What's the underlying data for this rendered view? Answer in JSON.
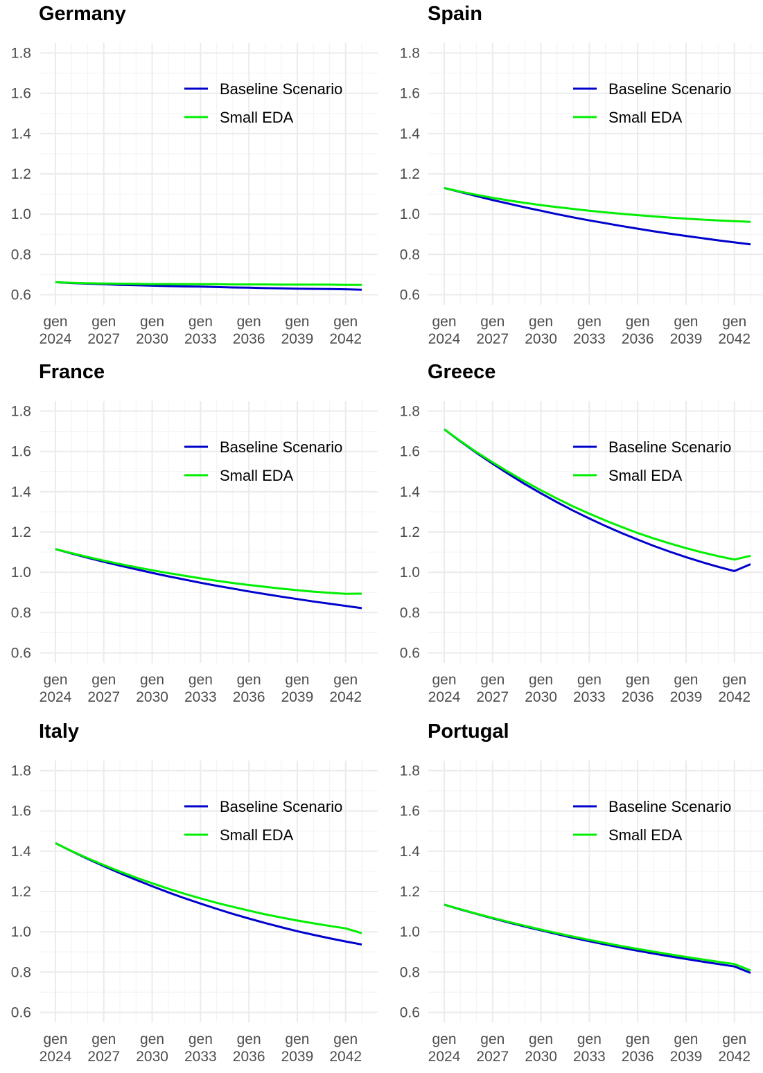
{
  "colors": {
    "baseline": "#0000cd",
    "small_eda": "#00ee00",
    "grid_major": "#ebebeb",
    "grid_minor": "#f4f4f4"
  },
  "chart_data": [
    {
      "type": "line",
      "title": "Germany",
      "x": [
        "gen 2024",
        "gen 2025",
        "gen 2026",
        "gen 2027",
        "gen 2028",
        "gen 2029",
        "gen 2030",
        "gen 2031",
        "gen 2032",
        "gen 2033",
        "gen 2034",
        "gen 2035",
        "gen 2036",
        "gen 2037",
        "gen 2038",
        "gen 2039",
        "gen 2040",
        "gen 2041",
        "gen 2042",
        "gen 2043"
      ],
      "x_ticks": [
        {
          "line1": "gen",
          "line2": "2024"
        },
        {
          "line1": "gen",
          "line2": "2027"
        },
        {
          "line1": "gen",
          "line2": "2030"
        },
        {
          "line1": "gen",
          "line2": "2033"
        },
        {
          "line1": "gen",
          "line2": "2036"
        },
        {
          "line1": "gen",
          "line2": "2039"
        },
        {
          "line1": "gen",
          "line2": "2042"
        }
      ],
      "y_ticks": [
        "0.6",
        "0.8",
        "1.0",
        "1.2",
        "1.4",
        "1.6",
        "1.8"
      ],
      "ylim": [
        0.55,
        1.85
      ],
      "grid": true,
      "legend_position": "top-right",
      "series": [
        {
          "name": "Baseline Scenario",
          "values": [
            0.662,
            0.658,
            0.655,
            0.652,
            0.649,
            0.647,
            0.645,
            0.643,
            0.641,
            0.64,
            0.638,
            0.636,
            0.635,
            0.633,
            0.632,
            0.63,
            0.629,
            0.628,
            0.627,
            0.625
          ]
        },
        {
          "name": "Small EDA",
          "values": [
            0.662,
            0.659,
            0.657,
            0.656,
            0.655,
            0.654,
            0.653,
            0.653,
            0.652,
            0.652,
            0.652,
            0.651,
            0.651,
            0.651,
            0.65,
            0.65,
            0.65,
            0.65,
            0.649,
            0.649
          ]
        }
      ]
    },
    {
      "type": "line",
      "title": "Spain",
      "x": [
        "gen 2024",
        "gen 2025",
        "gen 2026",
        "gen 2027",
        "gen 2028",
        "gen 2029",
        "gen 2030",
        "gen 2031",
        "gen 2032",
        "gen 2033",
        "gen 2034",
        "gen 2035",
        "gen 2036",
        "gen 2037",
        "gen 2038",
        "gen 2039",
        "gen 2040",
        "gen 2041",
        "gen 2042",
        "gen 2043"
      ],
      "x_ticks": [
        {
          "line1": "gen",
          "line2": "2024"
        },
        {
          "line1": "gen",
          "line2": "2027"
        },
        {
          "line1": "gen",
          "line2": "2030"
        },
        {
          "line1": "gen",
          "line2": "2033"
        },
        {
          "line1": "gen",
          "line2": "2036"
        },
        {
          "line1": "gen",
          "line2": "2039"
        },
        {
          "line1": "gen",
          "line2": "2042"
        }
      ],
      "y_ticks": [
        "0.6",
        "0.8",
        "1.0",
        "1.2",
        "1.4",
        "1.6",
        "1.8"
      ],
      "ylim": [
        0.55,
        1.85
      ],
      "grid": true,
      "legend_position": "top-right",
      "series": [
        {
          "name": "Baseline Scenario",
          "values": [
            1.13,
            1.11,
            1.09,
            1.07,
            1.052,
            1.034,
            1.017,
            1.0,
            0.984,
            0.969,
            0.955,
            0.941,
            0.928,
            0.915,
            0.903,
            0.892,
            0.881,
            0.87,
            0.86,
            0.85
          ]
        },
        {
          "name": "Small EDA",
          "values": [
            1.13,
            1.112,
            1.096,
            1.081,
            1.068,
            1.056,
            1.045,
            1.035,
            1.026,
            1.017,
            1.009,
            1.002,
            0.995,
            0.989,
            0.983,
            0.978,
            0.973,
            0.969,
            0.965,
            0.962
          ]
        }
      ]
    },
    {
      "type": "line",
      "title": "France",
      "x": [
        "gen 2024",
        "gen 2025",
        "gen 2026",
        "gen 2027",
        "gen 2028",
        "gen 2029",
        "gen 2030",
        "gen 2031",
        "gen 2032",
        "gen 2033",
        "gen 2034",
        "gen 2035",
        "gen 2036",
        "gen 2037",
        "gen 2038",
        "gen 2039",
        "gen 2040",
        "gen 2041",
        "gen 2042",
        "gen 2043"
      ],
      "x_ticks": [
        {
          "line1": "gen",
          "line2": "2024"
        },
        {
          "line1": "gen",
          "line2": "2027"
        },
        {
          "line1": "gen",
          "line2": "2030"
        },
        {
          "line1": "gen",
          "line2": "2033"
        },
        {
          "line1": "gen",
          "line2": "2036"
        },
        {
          "line1": "gen",
          "line2": "2039"
        },
        {
          "line1": "gen",
          "line2": "2042"
        }
      ],
      "y_ticks": [
        "0.6",
        "0.8",
        "1.0",
        "1.2",
        "1.4",
        "1.6",
        "1.8"
      ],
      "ylim": [
        0.55,
        1.85
      ],
      "grid": true,
      "legend_position": "top-right",
      "series": [
        {
          "name": "Baseline Scenario",
          "values": [
            1.115,
            1.093,
            1.072,
            1.052,
            1.033,
            1.015,
            0.997,
            0.98,
            0.964,
            0.948,
            0.933,
            0.919,
            0.905,
            0.892,
            0.879,
            0.867,
            0.855,
            0.844,
            0.833,
            0.822
          ]
        },
        {
          "name": "Small EDA",
          "values": [
            1.115,
            1.095,
            1.076,
            1.058,
            1.041,
            1.025,
            1.01,
            0.996,
            0.983,
            0.97,
            0.958,
            0.947,
            0.937,
            0.928,
            0.919,
            0.911,
            0.904,
            0.898,
            0.893,
            0.894
          ]
        }
      ]
    },
    {
      "type": "line",
      "title": "Greece",
      "x": [
        "gen 2024",
        "gen 2025",
        "gen 2026",
        "gen 2027",
        "gen 2028",
        "gen 2029",
        "gen 2030",
        "gen 2031",
        "gen 2032",
        "gen 2033",
        "gen 2034",
        "gen 2035",
        "gen 2036",
        "gen 2037",
        "gen 2038",
        "gen 2039",
        "gen 2040",
        "gen 2041",
        "gen 2042",
        "gen 2043"
      ],
      "x_ticks": [
        {
          "line1": "gen",
          "line2": "2024"
        },
        {
          "line1": "gen",
          "line2": "2027"
        },
        {
          "line1": "gen",
          "line2": "2030"
        },
        {
          "line1": "gen",
          "line2": "2033"
        },
        {
          "line1": "gen",
          "line2": "2036"
        },
        {
          "line1": "gen",
          "line2": "2039"
        },
        {
          "line1": "gen",
          "line2": "2042"
        }
      ],
      "y_ticks": [
        "0.6",
        "0.8",
        "1.0",
        "1.2",
        "1.4",
        "1.6",
        "1.8"
      ],
      "ylim": [
        0.55,
        1.85
      ],
      "grid": true,
      "legend_position": "top-right",
      "series": [
        {
          "name": "Baseline Scenario",
          "values": [
            1.71,
            1.65,
            1.593,
            1.539,
            1.487,
            1.438,
            1.392,
            1.348,
            1.306,
            1.267,
            1.23,
            1.195,
            1.162,
            1.131,
            1.102,
            1.075,
            1.05,
            1.027,
            1.006,
            1.04
          ]
        },
        {
          "name": "Small EDA",
          "values": [
            1.71,
            1.652,
            1.597,
            1.546,
            1.497,
            1.451,
            1.407,
            1.366,
            1.327,
            1.291,
            1.257,
            1.225,
            1.195,
            1.168,
            1.143,
            1.12,
            1.099,
            1.08,
            1.063,
            1.082
          ]
        }
      ]
    },
    {
      "type": "line",
      "title": "Italy",
      "x": [
        "gen 2024",
        "gen 2025",
        "gen 2026",
        "gen 2027",
        "gen 2028",
        "gen 2029",
        "gen 2030",
        "gen 2031",
        "gen 2032",
        "gen 2033",
        "gen 2034",
        "gen 2035",
        "gen 2036",
        "gen 2037",
        "gen 2038",
        "gen 2039",
        "gen 2040",
        "gen 2041",
        "gen 2042",
        "gen 2043"
      ],
      "x_ticks": [
        {
          "line1": "gen",
          "line2": "2024"
        },
        {
          "line1": "gen",
          "line2": "2027"
        },
        {
          "line1": "gen",
          "line2": "2030"
        },
        {
          "line1": "gen",
          "line2": "2033"
        },
        {
          "line1": "gen",
          "line2": "2036"
        },
        {
          "line1": "gen",
          "line2": "2039"
        },
        {
          "line1": "gen",
          "line2": "2042"
        }
      ],
      "y_ticks": [
        "0.6",
        "0.8",
        "1.0",
        "1.2",
        "1.4",
        "1.6",
        "1.8"
      ],
      "ylim": [
        0.55,
        1.85
      ],
      "grid": true,
      "legend_position": "top-right",
      "series": [
        {
          "name": "Baseline Scenario",
          "values": [
            1.44,
            1.4,
            1.362,
            1.326,
            1.291,
            1.258,
            1.226,
            1.196,
            1.167,
            1.14,
            1.114,
            1.089,
            1.066,
            1.044,
            1.023,
            1.003,
            0.985,
            0.968,
            0.952,
            0.937
          ]
        },
        {
          "name": "Small EDA",
          "values": [
            1.44,
            1.401,
            1.365,
            1.331,
            1.299,
            1.269,
            1.241,
            1.214,
            1.189,
            1.166,
            1.144,
            1.124,
            1.105,
            1.087,
            1.071,
            1.056,
            1.042,
            1.029,
            1.017,
            0.993
          ]
        }
      ]
    },
    {
      "type": "line",
      "title": "Portugal",
      "x": [
        "gen 2024",
        "gen 2025",
        "gen 2026",
        "gen 2027",
        "gen 2028",
        "gen 2029",
        "gen 2030",
        "gen 2031",
        "gen 2032",
        "gen 2033",
        "gen 2034",
        "gen 2035",
        "gen 2036",
        "gen 2037",
        "gen 2038",
        "gen 2039",
        "gen 2040",
        "gen 2041",
        "gen 2042",
        "gen 2043"
      ],
      "x_ticks": [
        {
          "line1": "gen",
          "line2": "2024"
        },
        {
          "line1": "gen",
          "line2": "2027"
        },
        {
          "line1": "gen",
          "line2": "2030"
        },
        {
          "line1": "gen",
          "line2": "2033"
        },
        {
          "line1": "gen",
          "line2": "2036"
        },
        {
          "line1": "gen",
          "line2": "2039"
        },
        {
          "line1": "gen",
          "line2": "2042"
        }
      ],
      "y_ticks": [
        "0.6",
        "0.8",
        "1.0",
        "1.2",
        "1.4",
        "1.6",
        "1.8"
      ],
      "ylim": [
        0.55,
        1.85
      ],
      "grid": true,
      "legend_position": "top-right",
      "series": [
        {
          "name": "Baseline Scenario",
          "values": [
            1.135,
            1.111,
            1.089,
            1.067,
            1.046,
            1.026,
            1.007,
            0.988,
            0.97,
            0.953,
            0.937,
            0.921,
            0.906,
            0.892,
            0.878,
            0.865,
            0.852,
            0.84,
            0.828,
            0.796
          ]
        },
        {
          "name": "Small EDA",
          "values": [
            1.135,
            1.112,
            1.09,
            1.069,
            1.049,
            1.03,
            1.011,
            0.993,
            0.976,
            0.96,
            0.944,
            0.929,
            0.915,
            0.901,
            0.888,
            0.875,
            0.863,
            0.851,
            0.84,
            0.808
          ]
        }
      ]
    }
  ]
}
